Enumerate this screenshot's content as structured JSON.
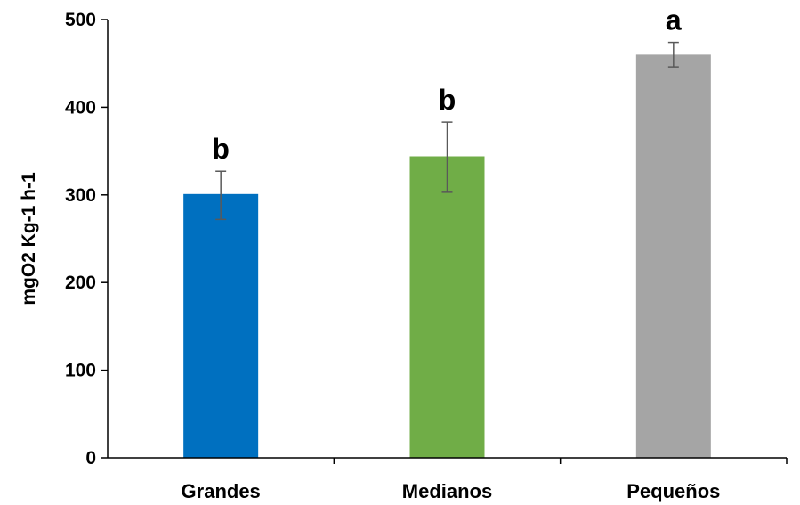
{
  "chart_data": {
    "type": "bar",
    "categories": [
      "Grandes",
      "Medianos",
      "Pequeños"
    ],
    "values": [
      301,
      344,
      460
    ],
    "error_low": [
      272,
      303,
      446
    ],
    "error_high": [
      327,
      383,
      474
    ],
    "significance_labels": [
      "b",
      "b",
      "a"
    ],
    "colors": [
      "#0070c0",
      "#70ad47",
      "#a5a5a5"
    ],
    "error_bar_color": "#595959",
    "ylabel": "mgO2 Kg-1 h-1",
    "xlabel": "",
    "title": "",
    "ylim": [
      0,
      500
    ],
    "yticks": [
      0,
      100,
      200,
      300,
      400,
      500
    ],
    "grid": false,
    "legend": "none"
  }
}
